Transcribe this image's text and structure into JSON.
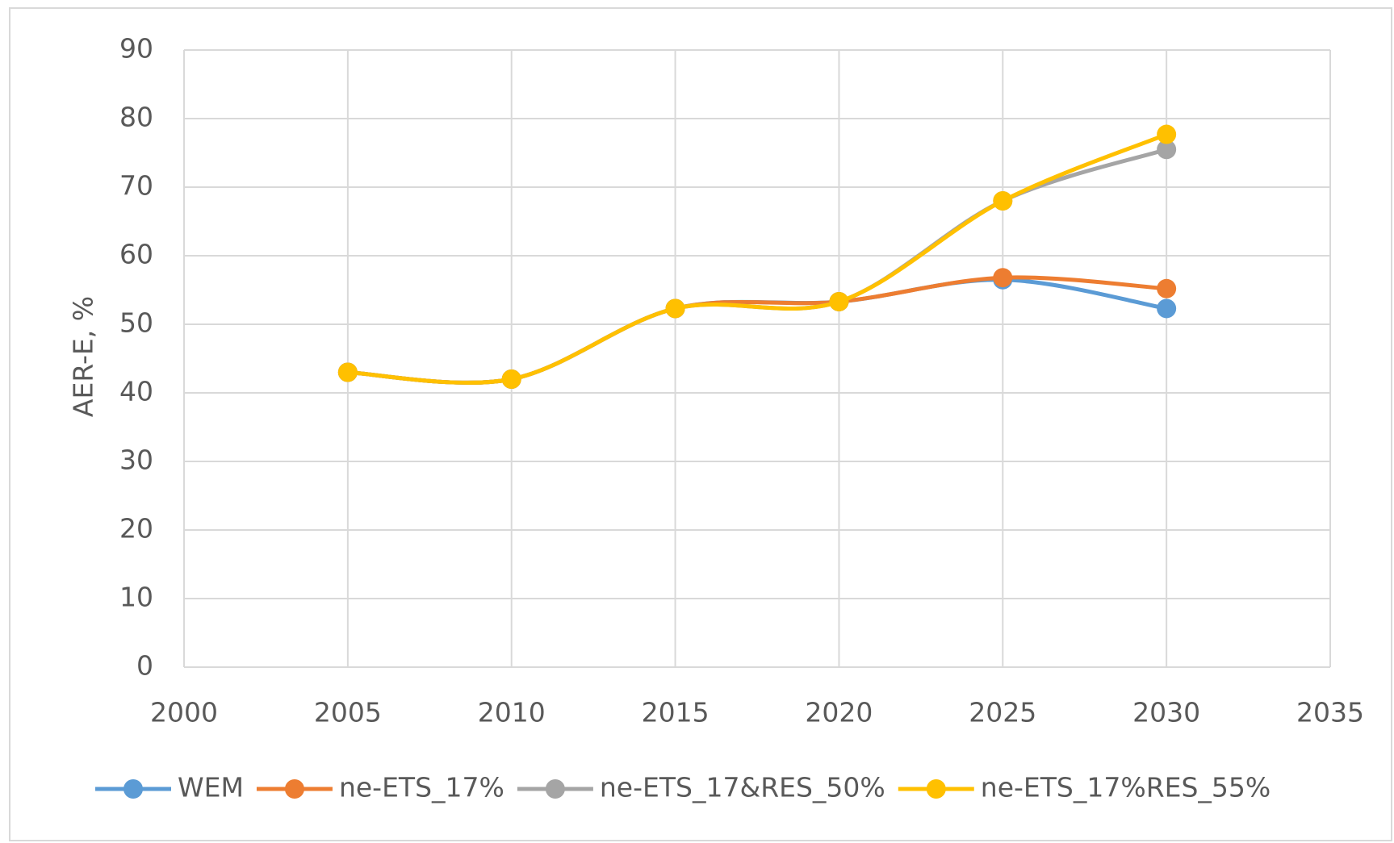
{
  "chart_data": {
    "type": "line",
    "y_label": "AER-E, %",
    "x": [
      2005,
      2010,
      2015,
      2020,
      2025,
      2030
    ],
    "series": [
      {
        "name": "WEM",
        "color": "#5b9bd5",
        "values": [
          43,
          42,
          52.3,
          53.3,
          56.5,
          52.3
        ]
      },
      {
        "name": "ne-ETS_17%",
        "color": "#ed7d31",
        "values": [
          43,
          42,
          52.3,
          53.3,
          56.8,
          55.2
        ]
      },
      {
        "name": "ne-ETS_17&RES_50%",
        "color": "#a5a5a5",
        "values": [
          43,
          42,
          52.3,
          53.3,
          68,
          75.5
        ]
      },
      {
        "name": "ne-ETS_17%RES_55%",
        "color": "#ffc000",
        "values": [
          43,
          42,
          52.3,
          53.3,
          68,
          77.7
        ]
      }
    ],
    "xlim": [
      2000,
      2035
    ],
    "xticks": [
      2000,
      2005,
      2010,
      2015,
      2020,
      2025,
      2030,
      2035
    ],
    "ylim": [
      0,
      90
    ],
    "yticks": [
      0,
      10,
      20,
      30,
      40,
      50,
      60,
      70,
      80,
      90
    ],
    "grid": true,
    "smooth": true,
    "legend": "bottom"
  }
}
